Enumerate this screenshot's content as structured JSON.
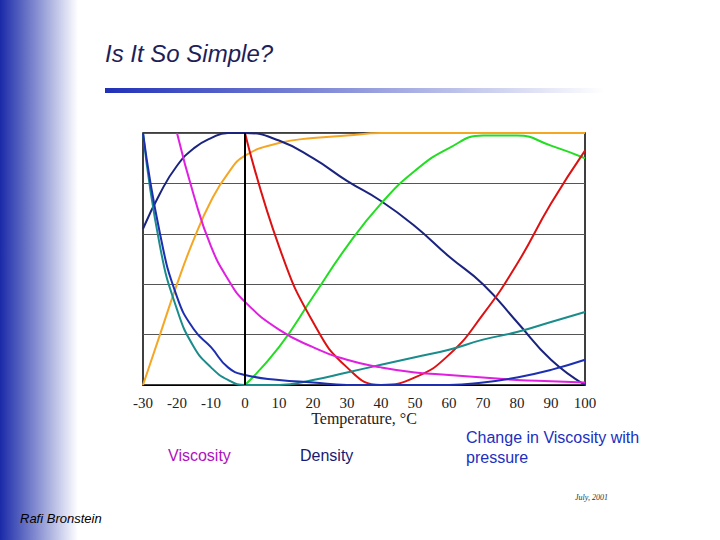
{
  "chart_data": {
    "type": "line",
    "title": "Is It So Simple?",
    "x_label": "Temperature, °C",
    "x": [
      -30,
      -25,
      -20,
      -15,
      -10,
      -5,
      0,
      10,
      20,
      30,
      40,
      50,
      60,
      70,
      80,
      90,
      100
    ],
    "series": [
      {
        "color": "#f5a623",
        "values": [
          0.0,
          0.2,
          0.4,
          0.58,
          0.73,
          0.84,
          0.91,
          0.96,
          0.98,
          0.99,
          1.0,
          1.0,
          1.0,
          1.0,
          1.0,
          1.0,
          1.0
        ]
      },
      {
        "color": "#1a237e",
        "values": [
          0.62,
          0.76,
          0.87,
          0.94,
          0.98,
          1.0,
          1.0,
          0.97,
          0.9,
          0.81,
          0.73,
          0.63,
          0.51,
          0.4,
          0.25,
          0.1,
          0.0
        ]
      },
      {
        "color": "#22dd22",
        "values": [
          null,
          null,
          null,
          null,
          null,
          null,
          0.0,
          0.15,
          0.35,
          0.55,
          0.72,
          0.85,
          0.94,
          0.99,
          0.99,
          0.95,
          0.9
        ]
      },
      {
        "color": "#dd1111",
        "values": [
          null,
          null,
          null,
          null,
          null,
          null,
          1.0,
          0.55,
          0.25,
          0.07,
          0.0,
          0.03,
          0.12,
          0.28,
          0.48,
          0.72,
          0.93
        ]
      },
      {
        "color": "#1a8c8c",
        "values": [
          1.0,
          0.55,
          0.3,
          0.15,
          0.07,
          0.02,
          0.0,
          0.0,
          0.02,
          0.05,
          0.08,
          0.11,
          0.14,
          0.18,
          0.21,
          0.25,
          0.29
        ]
      },
      {
        "color": "#e020e0",
        "values": [
          null,
          null,
          1.0,
          0.75,
          0.55,
          0.42,
          0.33,
          0.22,
          0.15,
          0.1,
          0.07,
          0.05,
          0.04,
          0.03,
          0.02,
          0.015,
          0.01
        ]
      },
      {
        "color": "#1c2fb0",
        "values": [
          1.0,
          0.6,
          0.35,
          0.22,
          0.15,
          0.07,
          0.04,
          0.02,
          0.01,
          0.0,
          0.0,
          0.0,
          0.0,
          0.01,
          0.03,
          0.06,
          0.1
        ]
      }
    ],
    "vlines": [
      0
    ],
    "xlim": [
      -30,
      100
    ],
    "xticks": [
      -30,
      -20,
      -10,
      0,
      10,
      20,
      30,
      40,
      50,
      60,
      70,
      80,
      90,
      100
    ],
    "ylim": [
      0,
      1
    ],
    "yticks": [
      0,
      0.2,
      0.4,
      0.6,
      0.8,
      1
    ],
    "grid": true,
    "tick_labels": "x",
    "annotations": [
      {
        "text": "Viscosity",
        "color": "#b010c0"
      },
      {
        "text": "Density",
        "color": "#1a1a70"
      },
      {
        "text": "Change in Viscosity with pressure",
        "color": "#2030c0"
      }
    ],
    "author": "Rafi Bronstein",
    "date": "July, 2001"
  }
}
